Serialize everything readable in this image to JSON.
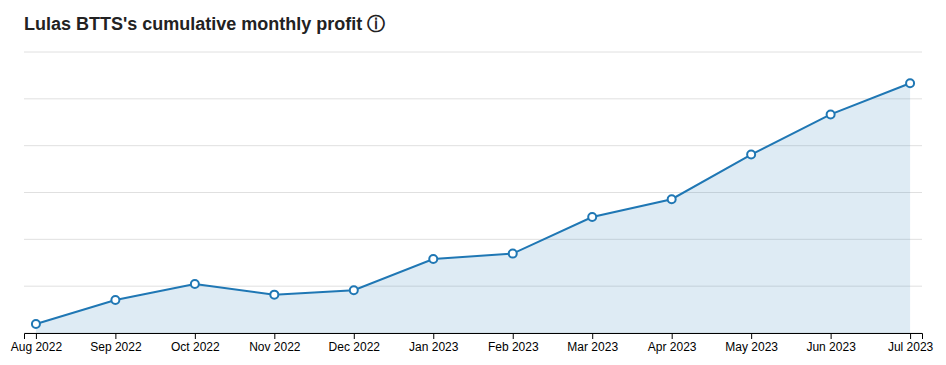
{
  "chart_data": {
    "type": "area",
    "title": "Lulas BTTS's cumulative monthly profit ⓘ",
    "categories": [
      "Aug 2022",
      "Sep 2022",
      "Oct 2022",
      "Nov 2022",
      "Dec 2022",
      "Jan 2023",
      "Feb 2023",
      "Mar 2023",
      "Apr 2023",
      "May 2023",
      "Jun 2023",
      "Jul 2023"
    ],
    "values": [
      1.5,
      4.2,
      6.0,
      4.8,
      5.3,
      8.8,
      9.4,
      13.5,
      15.5,
      20.5,
      25.0,
      28.5
    ],
    "ylim": [
      0.5,
      32.0
    ],
    "yticks": [
      0.5,
      5.75,
      11.0,
      16.25,
      21.5,
      26.75,
      32.0
    ],
    "grid": true,
    "marker": "circle",
    "tick_labels": "x"
  }
}
